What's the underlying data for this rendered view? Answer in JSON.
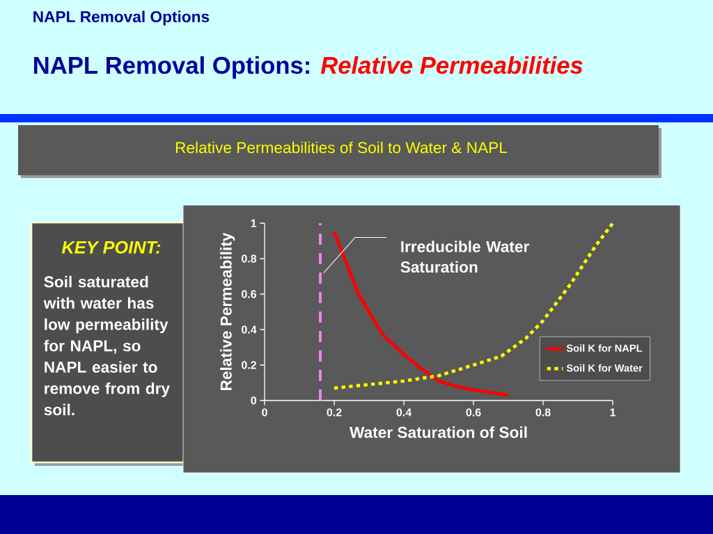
{
  "chart_data": {
    "type": "line",
    "title": "Relative Permeabilities of Soil to Water & NAPL",
    "xlabel": "Water Saturation of Soil",
    "ylabel": "Relative Permeability",
    "annotations": [
      "NAPL Removal Options",
      "NAPL Removal Options:",
      "Relative Permeabilities",
      "KEY POINT:",
      "Soil saturated with water has low permeability for NAPL, so NAPL easier to remove from dry soil.",
      {
        "text": "Irreducible Water Saturation",
        "x": 0.17,
        "y": 0.72
      }
    ],
    "xlim": [
      0,
      1
    ],
    "ylim": [
      0,
      1
    ],
    "xticks": [
      0,
      0.2,
      0.4,
      0.6,
      0.8,
      1
    ],
    "yticks": [
      0,
      0.2,
      0.4,
      0.6,
      0.8,
      1
    ],
    "legend": "right",
    "ref_lines": [
      {
        "axis": "x",
        "value": 0.16,
        "color": "#ee82ee",
        "line_style": "dashed"
      }
    ],
    "series": [
      {
        "name": "Soil K for NAPL",
        "color": "#ff0000",
        "line_style": "solid",
        "x": [
          0.2,
          0.23,
          0.27,
          0.3,
          0.34,
          0.4,
          0.45,
          0.5,
          0.55,
          0.6,
          0.7
        ],
        "values": [
          0.95,
          0.8,
          0.6,
          0.5,
          0.37,
          0.26,
          0.18,
          0.11,
          0.08,
          0.06,
          0.03
        ]
      },
      {
        "name": "Soil K for Water",
        "color": "#ffff00",
        "line_style": "dotted",
        "x": [
          0.2,
          0.3,
          0.4,
          0.5,
          0.6,
          0.68,
          0.75,
          0.8,
          0.88,
          0.95,
          1.0
        ],
        "values": [
          0.07,
          0.09,
          0.11,
          0.14,
          0.2,
          0.25,
          0.35,
          0.45,
          0.66,
          0.87,
          1.0
        ]
      }
    ]
  }
}
